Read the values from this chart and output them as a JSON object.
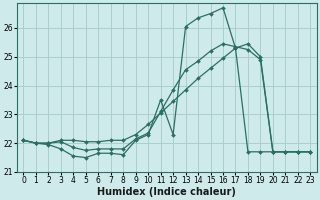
{
  "xlabel": "Humidex (Indice chaleur)",
  "bg_color": "#ceeaea",
  "grid_color": "#aacece",
  "line_color": "#2a7060",
  "xlim": [
    -0.5,
    23.5
  ],
  "ylim": [
    21.0,
    26.85
  ],
  "yticks": [
    21,
    22,
    23,
    24,
    25,
    26
  ],
  "xticks": [
    0,
    1,
    2,
    3,
    4,
    5,
    6,
    7,
    8,
    9,
    10,
    11,
    12,
    13,
    14,
    15,
    16,
    17,
    18,
    19,
    20,
    21,
    22,
    23
  ],
  "series1_x": [
    0,
    1,
    2,
    3,
    4,
    5,
    6,
    7,
    8,
    9,
    10,
    11,
    12,
    13,
    14,
    15,
    16,
    17,
    18,
    19,
    20,
    21,
    22,
    23
  ],
  "series1_y": [
    22.1,
    22.0,
    21.95,
    21.8,
    21.55,
    21.5,
    21.65,
    21.65,
    21.6,
    22.1,
    22.3,
    23.5,
    22.3,
    26.05,
    26.35,
    26.5,
    26.7,
    25.3,
    21.7,
    21.7,
    21.7,
    21.7,
    21.7,
    21.7
  ],
  "series2_x": [
    0,
    1,
    2,
    3,
    4,
    5,
    6,
    7,
    8,
    9,
    10,
    11,
    12,
    13,
    14,
    15,
    16,
    17,
    18,
    19,
    20,
    21,
    22,
    23
  ],
  "series2_y": [
    22.1,
    22.0,
    22.0,
    22.1,
    22.1,
    22.05,
    22.05,
    22.1,
    22.1,
    22.3,
    22.65,
    23.05,
    23.45,
    23.85,
    24.25,
    24.6,
    24.95,
    25.3,
    25.45,
    25.0,
    21.7,
    21.7,
    21.7,
    21.7
  ],
  "series3_x": [
    0,
    1,
    2,
    3,
    4,
    5,
    6,
    7,
    8,
    9,
    10,
    11,
    12,
    13,
    14,
    15,
    16,
    17,
    18,
    19,
    20,
    21,
    22,
    23
  ],
  "series3_y": [
    22.1,
    22.0,
    22.0,
    22.05,
    21.85,
    21.75,
    21.8,
    21.8,
    21.8,
    22.15,
    22.35,
    23.1,
    23.85,
    24.55,
    24.85,
    25.2,
    25.45,
    25.35,
    25.25,
    24.9,
    21.7,
    21.7,
    21.7,
    21.7
  ],
  "markersize": 2.0,
  "linewidth": 0.9,
  "xlabel_fontsize": 7,
  "tick_fontsize": 5.5
}
